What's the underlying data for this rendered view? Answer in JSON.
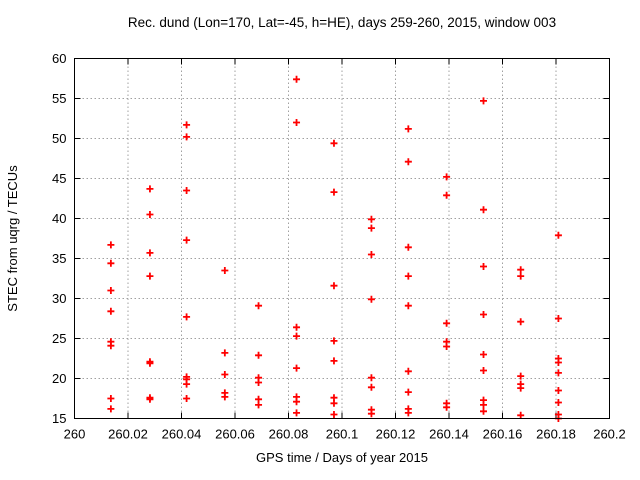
{
  "chart_data": {
    "type": "scatter",
    "title": "Rec. dund (Lon=170, Lat=-45, h=HE), days 259-260, 2015, window 003",
    "xlabel": "GPS time / Days of year 2015",
    "ylabel": "STEC from uqrg / TECUs",
    "xlim": [
      260.0,
      260.2
    ],
    "ylim": [
      15,
      60
    ],
    "xticks": [
      260.0,
      260.02,
      260.04,
      260.06,
      260.08,
      260.1,
      260.12,
      260.14,
      260.16,
      260.18,
      260.2
    ],
    "xtick_labels": [
      "260",
      "260.02",
      "260.04",
      "260.06",
      "260.08",
      "260.1",
      "260.12",
      "260.14",
      "260.16",
      "260.18",
      "260.2"
    ],
    "yticks": [
      15,
      20,
      25,
      30,
      35,
      40,
      45,
      50,
      55,
      60
    ],
    "ytick_labels": [
      "15",
      "20",
      "25",
      "30",
      "35",
      "40",
      "45",
      "50",
      "55",
      "60"
    ],
    "grid": true,
    "legend": "none",
    "marker": "plus",
    "marker_color": "#ff0000",
    "series": [
      {
        "name": "STEC",
        "points": [
          [
            260.0136,
            36.7
          ],
          [
            260.0136,
            34.4
          ],
          [
            260.0136,
            31.0
          ],
          [
            260.0136,
            28.4
          ],
          [
            260.0136,
            24.6
          ],
          [
            260.0136,
            24.1
          ],
          [
            260.0136,
            17.5
          ],
          [
            260.0136,
            16.2
          ],
          [
            260.0282,
            43.7
          ],
          [
            260.0282,
            40.5
          ],
          [
            260.0282,
            35.7
          ],
          [
            260.0282,
            32.8
          ],
          [
            260.0282,
            22.1
          ],
          [
            260.0282,
            21.9
          ],
          [
            260.0282,
            17.6
          ],
          [
            260.0282,
            17.4
          ],
          [
            260.0419,
            51.7
          ],
          [
            260.0419,
            50.2
          ],
          [
            260.0419,
            43.5
          ],
          [
            260.0419,
            37.3
          ],
          [
            260.0419,
            27.7
          ],
          [
            260.0419,
            20.2
          ],
          [
            260.0419,
            19.9
          ],
          [
            260.0419,
            19.3
          ],
          [
            260.0419,
            17.5
          ],
          [
            260.0562,
            33.5
          ],
          [
            260.0562,
            23.2
          ],
          [
            260.0562,
            20.5
          ],
          [
            260.0562,
            18.2
          ],
          [
            260.0562,
            17.7
          ],
          [
            260.0688,
            29.1
          ],
          [
            260.0688,
            22.9
          ],
          [
            260.0688,
            20.1
          ],
          [
            260.0688,
            19.5
          ],
          [
            260.0688,
            17.4
          ],
          [
            260.0688,
            16.7
          ],
          [
            260.083,
            57.4
          ],
          [
            260.083,
            52.0
          ],
          [
            260.083,
            26.4
          ],
          [
            260.083,
            25.3
          ],
          [
            260.083,
            21.3
          ],
          [
            260.083,
            17.7
          ],
          [
            260.083,
            17.1
          ],
          [
            260.083,
            15.7
          ],
          [
            260.097,
            49.4
          ],
          [
            260.097,
            43.3
          ],
          [
            260.097,
            31.6
          ],
          [
            260.097,
            24.7
          ],
          [
            260.097,
            22.2
          ],
          [
            260.097,
            17.6
          ],
          [
            260.097,
            16.9
          ],
          [
            260.097,
            15.5
          ],
          [
            260.111,
            39.9
          ],
          [
            260.111,
            38.8
          ],
          [
            260.111,
            35.5
          ],
          [
            260.111,
            29.9
          ],
          [
            260.111,
            20.1
          ],
          [
            260.111,
            18.9
          ],
          [
            260.111,
            16.1
          ],
          [
            260.111,
            15.6
          ],
          [
            260.1248,
            51.2
          ],
          [
            260.1248,
            47.1
          ],
          [
            260.1248,
            36.4
          ],
          [
            260.1248,
            32.8
          ],
          [
            260.1248,
            29.1
          ],
          [
            260.1248,
            20.9
          ],
          [
            260.1248,
            18.3
          ],
          [
            260.1248,
            16.2
          ],
          [
            260.1248,
            15.7
          ],
          [
            260.1391,
            45.2
          ],
          [
            260.1391,
            42.9
          ],
          [
            260.1391,
            26.9
          ],
          [
            260.1391,
            24.6
          ],
          [
            260.1391,
            24.0
          ],
          [
            260.1391,
            16.9
          ],
          [
            260.1391,
            16.4
          ],
          [
            260.1529,
            54.7
          ],
          [
            260.1529,
            41.1
          ],
          [
            260.1529,
            34.0
          ],
          [
            260.1529,
            28.0
          ],
          [
            260.1529,
            23.0
          ],
          [
            260.1529,
            21.0
          ],
          [
            260.1529,
            17.3
          ],
          [
            260.1529,
            16.7
          ],
          [
            260.1529,
            15.9
          ],
          [
            260.1668,
            33.6
          ],
          [
            260.1668,
            32.8
          ],
          [
            260.1668,
            27.1
          ],
          [
            260.1668,
            20.3
          ],
          [
            260.1668,
            19.3
          ],
          [
            260.1668,
            18.8
          ],
          [
            260.1668,
            15.4
          ],
          [
            260.1809,
            37.9
          ],
          [
            260.1809,
            27.5
          ],
          [
            260.1809,
            22.5
          ],
          [
            260.1809,
            22.0
          ],
          [
            260.1809,
            20.7
          ],
          [
            260.1809,
            18.5
          ],
          [
            260.1809,
            17.0
          ],
          [
            260.1809,
            15.5
          ],
          [
            260.1809,
            15.0
          ]
        ]
      }
    ]
  }
}
